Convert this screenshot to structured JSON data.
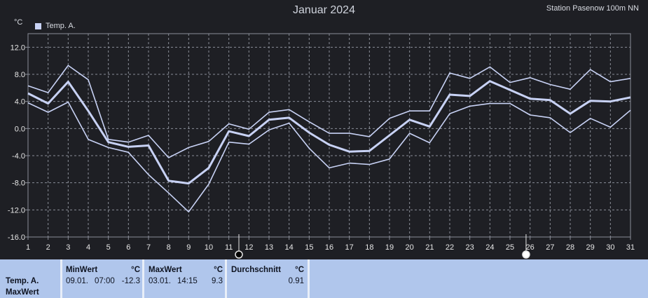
{
  "header": {
    "title": "Januar 2024",
    "station": "Station Pasenow 100m NN",
    "unit": "°C",
    "legend": "Temp. A."
  },
  "colors": {
    "background": "#1e1f24",
    "line": "#c8d2f5",
    "grid": "#8a8e98",
    "panel": "#b0c6ec"
  },
  "chart_data": {
    "type": "line",
    "title": "Januar 2024",
    "ylabel": "°C",
    "xlabel": "",
    "ylim": [
      -16,
      14
    ],
    "yticks": [
      "12.0",
      "8.0",
      "4.0",
      "0.0",
      "-4.0",
      "-8.0",
      "-12.0",
      "-16.0"
    ],
    "x": [
      1,
      2,
      3,
      4,
      5,
      6,
      7,
      8,
      9,
      10,
      11,
      12,
      13,
      14,
      15,
      16,
      17,
      18,
      19,
      20,
      21,
      22,
      23,
      24,
      25,
      26,
      27,
      28,
      29,
      30,
      31
    ],
    "grid": true,
    "series": [
      {
        "name": "Temp. A.",
        "role": "max",
        "values": [
          6.3,
          5.3,
          9.3,
          7.2,
          -1.6,
          -2.0,
          -1.0,
          -4.3,
          -2.8,
          -1.9,
          0.7,
          -0.1,
          2.4,
          2.8,
          1.0,
          -0.7,
          -0.7,
          -1.2,
          1.5,
          2.6,
          2.6,
          8.2,
          7.4,
          9.1,
          6.8,
          7.5,
          6.5,
          5.8,
          8.7,
          6.9,
          7.4
        ]
      },
      {
        "name": "Temp. A.",
        "role": "avg",
        "values": [
          5.2,
          3.7,
          6.9,
          2.6,
          -2.0,
          -2.7,
          -2.5,
          -7.7,
          -8.1,
          -5.8,
          -0.4,
          -1.1,
          1.3,
          1.6,
          -0.6,
          -2.4,
          -3.4,
          -3.3,
          -1.0,
          1.3,
          0.3,
          5.0,
          4.8,
          7.0,
          5.7,
          4.4,
          4.2,
          2.2,
          4.1,
          4.0,
          4.6
        ]
      },
      {
        "name": "Temp. A.",
        "role": "min",
        "values": [
          3.8,
          2.4,
          3.9,
          -1.6,
          -2.8,
          -3.5,
          -6.8,
          -9.5,
          -12.3,
          -8.2,
          -2.0,
          -2.3,
          -0.2,
          0.8,
          -2.9,
          -5.8,
          -5.1,
          -5.3,
          -4.5,
          -0.7,
          -2.1,
          2.2,
          3.3,
          3.7,
          3.7,
          2.0,
          1.6,
          -0.6,
          1.5,
          0.2,
          2.7
        ]
      }
    ]
  },
  "stats": {
    "row_label": "Temp. A.",
    "row_sublabel": "MaxWert",
    "min": {
      "label": "MinWert",
      "unit": "°C",
      "date": "09.01.",
      "time": "07:00",
      "value": "-12.3"
    },
    "max": {
      "label": "MaxWert",
      "unit": "°C",
      "date": "03.01.",
      "time": "14:15",
      "value": "9.3"
    },
    "avg": {
      "label": "Durchschnitt",
      "unit": "°C",
      "value": "0.91"
    }
  }
}
